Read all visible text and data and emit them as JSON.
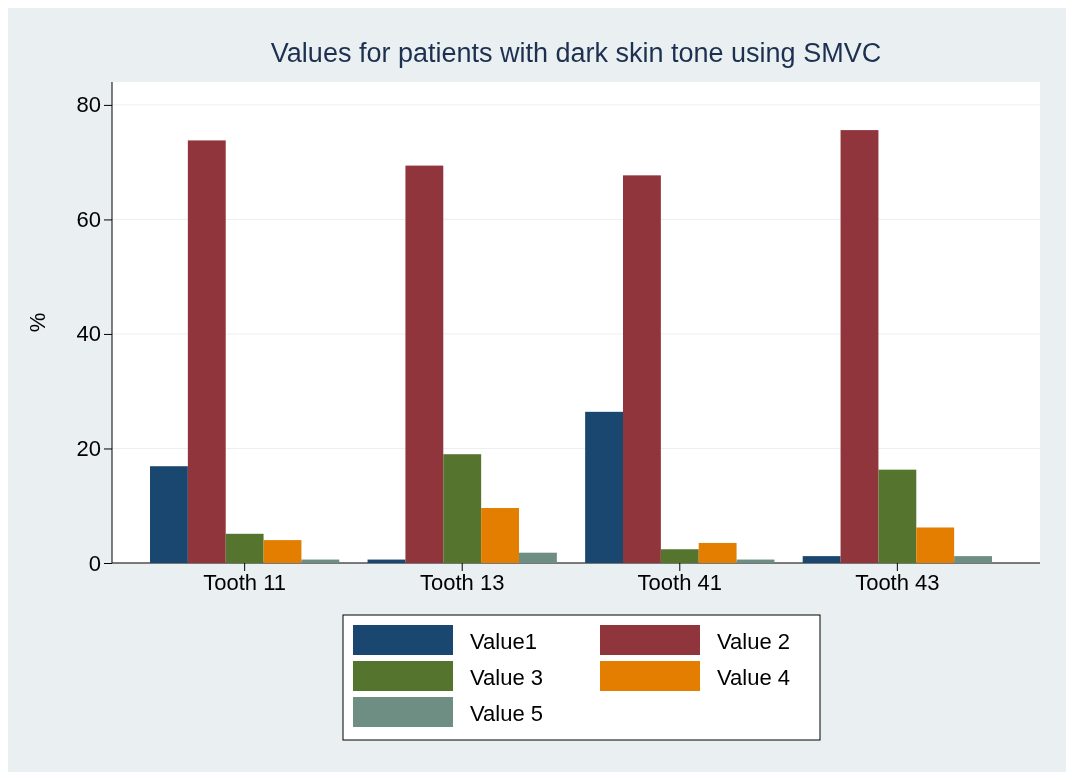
{
  "chart_data": {
    "type": "bar",
    "title": "Values for patients with dark skin tone using SMVC",
    "ylabel": "%",
    "categories": [
      "Tooth 11",
      "Tooth 13",
      "Tooth 41",
      "Tooth 43"
    ],
    "series": [
      {
        "name": "Value1",
        "color": "#1a476f",
        "values": [
          16.9,
          0.6,
          26.4,
          1.2
        ]
      },
      {
        "name": "Value 2",
        "color": "#90353b",
        "values": [
          73.8,
          69.4,
          67.7,
          75.6
        ]
      },
      {
        "name": "Value 3",
        "color": "#55752f",
        "values": [
          5.1,
          19.0,
          2.4,
          16.3
        ]
      },
      {
        "name": "Value 4",
        "color": "#e37e00",
        "values": [
          4.0,
          9.6,
          3.5,
          6.2
        ]
      },
      {
        "name": "Value 5",
        "color": "#6e8e84",
        "values": [
          0.6,
          1.8,
          0.6,
          1.2
        ]
      }
    ],
    "ylim": [
      0,
      84
    ],
    "yticks": [
      0,
      20,
      40,
      60,
      80
    ],
    "grid": "y",
    "legend": "bottom"
  }
}
